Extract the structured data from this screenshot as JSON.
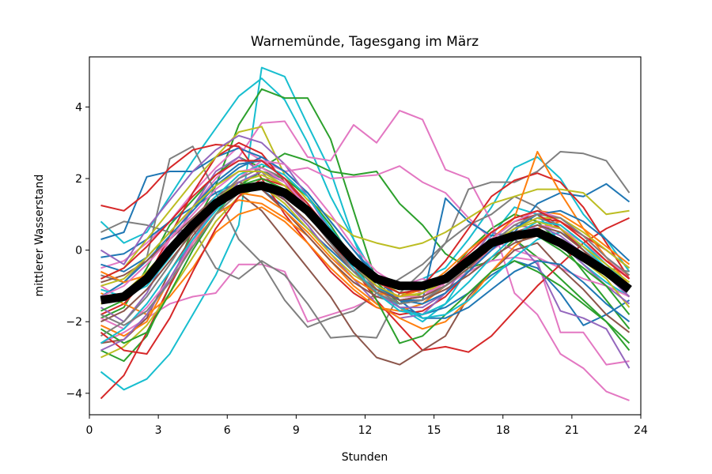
{
  "chart_data": {
    "type": "line",
    "title": "Warnemünde, Tagesgang im März",
    "xlabel": "Stunden",
    "ylabel": "mittlerer Wasserstand",
    "xlim": [
      0,
      24
    ],
    "ylim": [
      -4.6,
      5.4
    ],
    "xticks": [
      0,
      3,
      6,
      9,
      12,
      15,
      18,
      21,
      24
    ],
    "yticks": [
      -4,
      -2,
      0,
      2,
      4
    ],
    "grid": false,
    "legend": "none",
    "x": [
      0.5,
      1.5,
      2.5,
      3.5,
      4.5,
      5.5,
      6.5,
      7.5,
      8.5,
      9.5,
      10.5,
      11.5,
      12.5,
      13.5,
      14.5,
      15.5,
      16.5,
      17.5,
      18.5,
      19.5,
      20.5,
      21.5,
      22.5,
      23.5
    ],
    "mean": {
      "color": "#000000",
      "values": [
        -1.4,
        -1.3,
        -0.8,
        0.0,
        0.7,
        1.3,
        1.7,
        1.8,
        1.6,
        1.1,
        0.4,
        -0.3,
        -0.8,
        -1.0,
        -1.0,
        -0.8,
        -0.3,
        0.2,
        0.4,
        0.5,
        0.2,
        -0.2,
        -0.6,
        -1.1
      ]
    },
    "series": [
      {
        "color": "#17becf",
        "values": [
          -3.4,
          -3.9,
          -3.6,
          -2.9,
          -1.8,
          -0.7,
          0.7,
          5.1,
          4.85,
          3.5,
          2.2,
          0.3,
          -1.2,
          -1.6,
          -2.0,
          -1.5,
          -0.5,
          0.4,
          1.2,
          1.0,
          0.2,
          -0.4,
          -0.9,
          -1.3
        ]
      },
      {
        "color": "#17becf",
        "values": [
          0.8,
          0.2,
          0.5,
          1.5,
          2.5,
          3.4,
          4.3,
          4.8,
          4.2,
          3.0,
          1.5,
          0.3,
          -0.8,
          -1.0,
          -0.8,
          -0.5,
          0.3,
          1.2,
          2.3,
          2.6,
          2.0,
          1.0,
          0.3,
          -0.6
        ]
      },
      {
        "color": "#2ca02c",
        "values": [
          -2.8,
          -3.1,
          -2.4,
          -1.0,
          0.6,
          1.8,
          3.5,
          4.5,
          4.25,
          4.25,
          3.1,
          1.1,
          -0.9,
          -1.5,
          -1.2,
          -0.8,
          0.0,
          0.6,
          1.0,
          0.8,
          0.2,
          -0.6,
          -1.4,
          -2.2
        ]
      },
      {
        "color": "#2ca02c",
        "values": [
          -1.9,
          -1.6,
          -0.5,
          0.7,
          1.4,
          2.1,
          2.6,
          2.3,
          2.7,
          2.5,
          2.2,
          2.1,
          2.2,
          1.3,
          0.7,
          -0.1,
          -0.5,
          -0.3,
          0.3,
          -0.2,
          -0.8,
          -1.4,
          -2.0,
          -2.8
        ]
      },
      {
        "color": "#e377c2",
        "values": [
          -1.0,
          -1.4,
          -0.9,
          0.3,
          1.2,
          2.0,
          2.6,
          3.55,
          3.6,
          2.6,
          2.5,
          3.5,
          3.0,
          3.9,
          3.65,
          2.25,
          2.0,
          0.8,
          -1.2,
          -1.8,
          -2.9,
          -3.3,
          -3.95,
          -4.2
        ]
      },
      {
        "color": "#e377c2",
        "values": [
          -2.6,
          -2.3,
          -1.9,
          -1.5,
          -1.3,
          -1.2,
          -0.4,
          -0.4,
          -0.6,
          -2.0,
          -1.8,
          -1.6,
          -1.3,
          -1.0,
          -0.8,
          -1.0,
          -0.6,
          -0.3,
          -0.2,
          -0.3,
          -2.3,
          -2.3,
          -3.2,
          -3.1
        ]
      },
      {
        "color": "#e377c2",
        "values": [
          -0.5,
          -0.3,
          0.2,
          0.8,
          1.6,
          2.3,
          2.9,
          2.5,
          2.2,
          2.3,
          2.0,
          2.05,
          2.1,
          2.35,
          1.9,
          1.6,
          0.9,
          0.3,
          0.0,
          -0.2,
          -0.5,
          -0.8,
          -1.0,
          -1.3
        ]
      },
      {
        "color": "#7f7f7f",
        "values": [
          -0.7,
          -0.9,
          -0.2,
          2.55,
          2.9,
          1.6,
          0.3,
          -0.35,
          -1.4,
          -2.15,
          -1.9,
          -1.7,
          -1.2,
          -0.8,
          -0.4,
          0.2,
          1.7,
          1.9,
          1.9,
          2.2,
          2.75,
          2.7,
          2.5,
          1.6
        ]
      },
      {
        "color": "#7f7f7f",
        "values": [
          0.5,
          0.8,
          0.7,
          0.5,
          0.6,
          -0.5,
          -0.8,
          -0.3,
          -0.7,
          -1.5,
          -2.45,
          -2.4,
          -2.45,
          -1.2,
          -0.6,
          0.2,
          0.7,
          1.0,
          1.5,
          1.2,
          0.6,
          0.0,
          -0.5,
          -0.6
        ]
      },
      {
        "color": "#1f77b4",
        "values": [
          0.3,
          0.5,
          2.05,
          2.2,
          2.2,
          2.6,
          2.85,
          2.6,
          2.2,
          1.6,
          0.8,
          0.0,
          -0.7,
          -1.4,
          -1.4,
          1.45,
          0.8,
          0.4,
          0.5,
          1.3,
          1.6,
          1.5,
          1.85,
          1.35
        ]
      },
      {
        "color": "#1f77b4",
        "values": [
          -0.2,
          -0.1,
          0.3,
          0.8,
          1.2,
          1.6,
          1.9,
          1.7,
          1.2,
          0.6,
          0.0,
          -0.6,
          -1.2,
          -1.6,
          -1.8,
          -1.6,
          -1.2,
          -0.7,
          -0.3,
          -0.5,
          -1.2,
          -2.1,
          -1.8,
          -1.4
        ]
      },
      {
        "color": "#d62728",
        "values": [
          -4.15,
          -3.5,
          -2.3,
          -1.0,
          0.2,
          1.2,
          2.0,
          2.5,
          2.0,
          1.2,
          0.4,
          -0.5,
          -1.4,
          -2.1,
          -2.8,
          -2.7,
          -2.85,
          -2.4,
          -1.7,
          -1.0,
          -0.4,
          0.2,
          0.6,
          0.9
        ]
      },
      {
        "color": "#d62728",
        "values": [
          1.25,
          1.1,
          1.6,
          2.3,
          2.8,
          2.95,
          2.9,
          2.0,
          1.0,
          0.2,
          -0.6,
          -1.2,
          -1.6,
          -1.8,
          -1.7,
          -1.3,
          -0.6,
          0.1,
          0.6,
          0.9,
          0.8,
          0.4,
          0.0,
          -0.5
        ]
      },
      {
        "color": "#d62728",
        "values": [
          -1.8,
          -1.5,
          -0.8,
          0.4,
          1.6,
          2.6,
          3.0,
          2.7,
          1.9,
          1.0,
          0.2,
          -0.5,
          -1.0,
          -1.3,
          -1.0,
          -0.3,
          0.6,
          1.5,
          1.95,
          2.15,
          1.9,
          1.2,
          0.2,
          -0.8
        ]
      },
      {
        "color": "#9467bd",
        "values": [
          -1.6,
          -2.0,
          -1.2,
          0.0,
          1.2,
          2.2,
          2.6,
          2.2,
          1.4,
          0.7,
          -0.1,
          -0.8,
          -1.5,
          -1.9,
          -1.8,
          -1.2,
          -0.3,
          0.5,
          0.3,
          -0.4,
          -1.7,
          -1.9,
          -2.2,
          -3.3
        ]
      },
      {
        "color": "#8c564b",
        "values": [
          -2.6,
          -2.5,
          -1.9,
          -0.6,
          0.4,
          1.2,
          1.6,
          1.1,
          0.3,
          -0.5,
          -1.3,
          -2.3,
          -3.0,
          -3.2,
          -2.8,
          -2.4,
          -1.3,
          -0.6,
          0.0,
          0.2,
          -0.5,
          -1.1,
          -1.8,
          -2.3
        ]
      },
      {
        "color": "#bcbd22",
        "values": [
          -0.8,
          -0.5,
          0.3,
          1.1,
          1.9,
          2.6,
          3.3,
          3.45,
          2.1,
          1.4,
          0.9,
          0.4,
          0.2,
          0.05,
          0.2,
          0.5,
          0.9,
          1.3,
          1.5,
          1.7,
          1.7,
          1.6,
          1.0,
          1.1
        ]
      },
      {
        "color": "#bcbd22",
        "values": [
          -3.0,
          -2.7,
          -2.1,
          -1.2,
          -0.2,
          0.8,
          1.5,
          1.8,
          1.3,
          0.6,
          -0.1,
          -0.7,
          -1.1,
          -1.3,
          -1.2,
          -0.9,
          -0.4,
          0.1,
          0.4,
          0.5,
          0.2,
          -0.3,
          -0.8,
          -1.6
        ]
      },
      {
        "color": "#ff7f0e",
        "values": [
          -1.2,
          -1.5,
          -1.8,
          -1.3,
          -0.5,
          0.5,
          1.0,
          1.2,
          0.8,
          0.2,
          -0.5,
          -1.1,
          -1.6,
          -1.7,
          -1.5,
          -1.0,
          -0.4,
          0.3,
          0.9,
          2.75,
          1.6,
          0.6,
          -0.2,
          -1.0
        ]
      },
      {
        "color": "#ff7f0e",
        "values": [
          -2.1,
          -2.4,
          -2.0,
          -0.8,
          0.2,
          1.0,
          1.4,
          1.3,
          0.9,
          0.4,
          -0.3,
          -1.0,
          -1.5,
          -1.9,
          -2.2,
          -2.0,
          -1.4,
          -0.6,
          0.1,
          0.6,
          0.8,
          0.3,
          -0.3,
          -0.7
        ]
      },
      {
        "color": "#2ca02c",
        "values": [
          -2.2,
          -2.6,
          -2.3,
          -1.2,
          0.0,
          1.0,
          1.8,
          2.2,
          2.0,
          1.5,
          0.7,
          -0.3,
          -1.4,
          -2.6,
          -2.4,
          -1.8,
          -1.2,
          -0.6,
          -0.3,
          -0.6,
          -1.0,
          -1.5,
          -2.0,
          -2.6
        ]
      },
      {
        "color": "#1f77b4",
        "values": [
          -1.3,
          -0.9,
          -0.3,
          0.4,
          1.1,
          1.8,
          2.3,
          2.6,
          2.2,
          1.6,
          0.8,
          0.0,
          -0.8,
          -1.4,
          -1.9,
          -1.9,
          -1.6,
          -1.1,
          -0.6,
          -0.3,
          -0.4,
          -0.9,
          -1.5,
          -2.0
        ]
      },
      {
        "color": "#9467bd",
        "values": [
          0.0,
          -0.4,
          0.6,
          1.4,
          2.2,
          2.8,
          3.2,
          3.0,
          2.4,
          1.5,
          0.5,
          -0.4,
          -1.1,
          -1.5,
          -1.4,
          -1.0,
          -0.4,
          0.2,
          0.7,
          0.6,
          0.2,
          -0.4,
          -1.0,
          -1.5
        ]
      },
      {
        "color": "#e377c2",
        "values": [
          -1.9,
          -2.2,
          -1.6,
          -0.8,
          0.2,
          1.2,
          2.0,
          2.5,
          2.4,
          1.8,
          1.0,
          0.1,
          -0.6,
          -1.0,
          -1.2,
          -1.0,
          -0.5,
          0.0,
          0.4,
          0.7,
          0.6,
          0.2,
          -0.3,
          -0.8
        ]
      },
      {
        "color": "#8c564b",
        "values": [
          -0.9,
          -0.7,
          -0.3,
          0.3,
          0.9,
          1.5,
          1.9,
          1.7,
          1.1,
          0.4,
          -0.3,
          -0.9,
          -1.3,
          -1.5,
          -1.4,
          -1.1,
          -0.7,
          -0.2,
          0.2,
          0.4,
          0.2,
          -0.2,
          -0.6,
          -1.0
        ]
      },
      {
        "color": "#17becf",
        "values": [
          -1.1,
          -1.3,
          -1.0,
          -0.2,
          0.7,
          1.5,
          2.1,
          2.4,
          2.1,
          1.5,
          0.6,
          -0.2,
          -1.0,
          -1.6,
          -1.9,
          -1.8,
          -1.4,
          -0.8,
          -0.2,
          0.3,
          0.5,
          0.1,
          -0.5,
          -1.1
        ]
      },
      {
        "color": "#7f7f7f",
        "values": [
          -2.4,
          -2.0,
          -1.3,
          -0.4,
          0.6,
          1.4,
          2.0,
          2.3,
          2.0,
          1.3,
          0.4,
          -0.4,
          -1.1,
          -1.5,
          -1.4,
          -1.0,
          -0.5,
          0.1,
          0.6,
          0.9,
          0.7,
          0.2,
          -0.4,
          -1.0
        ]
      },
      {
        "color": "#bcbd22",
        "values": [
          -1.5,
          -1.2,
          -0.6,
          0.1,
          0.8,
          1.4,
          1.9,
          2.1,
          1.8,
          1.2,
          0.5,
          -0.2,
          -0.8,
          -1.2,
          -1.3,
          -1.0,
          -0.5,
          0.1,
          0.6,
          0.9,
          0.9,
          0.5,
          0.0,
          -0.5
        ]
      },
      {
        "color": "#d62728",
        "values": [
          -2.3,
          -2.8,
          -2.9,
          -1.9,
          -0.6,
          0.6,
          1.5,
          2.0,
          1.8,
          1.2,
          0.4,
          -0.4,
          -1.0,
          -1.4,
          -1.3,
          -0.9,
          -0.3,
          0.3,
          0.8,
          1.0,
          0.6,
          0.0,
          -0.7,
          -1.3
        ]
      },
      {
        "color": "#ff7f0e",
        "values": [
          -0.6,
          -0.9,
          -0.7,
          -0.1,
          0.6,
          1.2,
          1.6,
          1.5,
          1.1,
          0.5,
          -0.2,
          -0.8,
          -1.2,
          -1.3,
          -1.1,
          -0.6,
          0.0,
          0.5,
          0.9,
          1.1,
          1.0,
          0.6,
          0.1,
          -0.4
        ]
      },
      {
        "color": "#2ca02c",
        "values": [
          -1.7,
          -1.4,
          -0.8,
          -0.1,
          0.6,
          1.3,
          1.8,
          2.0,
          1.7,
          1.1,
          0.4,
          -0.3,
          -0.9,
          -1.2,
          -1.1,
          -0.8,
          -0.3,
          0.2,
          0.5,
          0.4,
          0.0,
          -0.5,
          -1.0,
          -1.8
        ]
      },
      {
        "color": "#9467bd",
        "values": [
          -2.8,
          -2.5,
          -1.8,
          -0.8,
          0.3,
          1.2,
          1.9,
          2.2,
          1.9,
          1.2,
          0.3,
          -0.5,
          -1.2,
          -1.6,
          -1.6,
          -1.2,
          -0.6,
          0.0,
          0.5,
          0.7,
          0.4,
          -0.1,
          -0.7,
          -1.3
        ]
      },
      {
        "color": "#1f77b4",
        "values": [
          -0.4,
          -0.6,
          -0.2,
          0.5,
          1.2,
          1.9,
          2.4,
          2.5,
          2.0,
          1.3,
          0.5,
          -0.3,
          -1.0,
          -1.4,
          -1.5,
          -1.2,
          -0.6,
          0.0,
          0.6,
          1.0,
          1.1,
          0.8,
          0.3,
          -0.3
        ]
      },
      {
        "color": "#e377c2",
        "values": [
          -1.3,
          -1.0,
          -0.4,
          0.3,
          1.0,
          1.7,
          2.2,
          2.3,
          1.9,
          1.2,
          0.4,
          -0.4,
          -1.0,
          -1.3,
          -1.3,
          -0.9,
          -0.3,
          0.3,
          0.8,
          1.1,
          0.9,
          0.4,
          -0.2,
          -0.8
        ]
      },
      {
        "color": "#8c564b",
        "values": [
          -2.0,
          -1.7,
          -1.1,
          -0.3,
          0.5,
          1.2,
          1.7,
          1.8,
          1.4,
          0.8,
          0.1,
          -0.6,
          -1.1,
          -1.4,
          -1.3,
          -1.0,
          -0.5,
          0.1,
          0.5,
          0.7,
          0.5,
          0.0,
          -0.6,
          -1.1
        ]
      },
      {
        "color": "#17becf",
        "values": [
          -2.6,
          -2.2,
          -1.5,
          -0.6,
          0.3,
          1.1,
          1.7,
          1.9,
          1.7,
          1.1,
          0.3,
          -0.5,
          -1.2,
          -1.7,
          -1.8,
          -1.5,
          -0.9,
          -0.2,
          0.4,
          0.8,
          0.7,
          0.2,
          -0.4,
          -1.0
        ]
      },
      {
        "color": "#bcbd22",
        "values": [
          -1.0,
          -0.8,
          -0.2,
          0.5,
          1.2,
          1.8,
          2.2,
          2.2,
          1.8,
          1.1,
          0.3,
          -0.4,
          -1.0,
          -1.3,
          -1.2,
          -0.8,
          -0.3,
          0.2,
          0.6,
          0.8,
          0.6,
          0.1,
          -0.4,
          -0.9
        ]
      },
      {
        "color": "#7f7f7f",
        "values": [
          -1.8,
          -2.1,
          -1.7,
          -0.9,
          0.1,
          1.0,
          1.6,
          1.9,
          1.6,
          1.0,
          0.2,
          -0.6,
          -1.2,
          -1.5,
          -1.4,
          -1.0,
          -0.4,
          0.2,
          0.7,
          1.0,
          0.9,
          0.4,
          -0.2,
          -0.7
        ]
      },
      {
        "color": "#d62728",
        "values": [
          -0.8,
          -0.5,
          0.1,
          0.8,
          1.5,
          2.1,
          2.5,
          2.5,
          2.0,
          1.3,
          0.5,
          -0.3,
          -0.9,
          -1.2,
          -1.1,
          -0.7,
          -0.1,
          0.5,
          0.9,
          1.1,
          0.8,
          0.3,
          -0.3,
          -0.8
        ]
      }
    ]
  }
}
